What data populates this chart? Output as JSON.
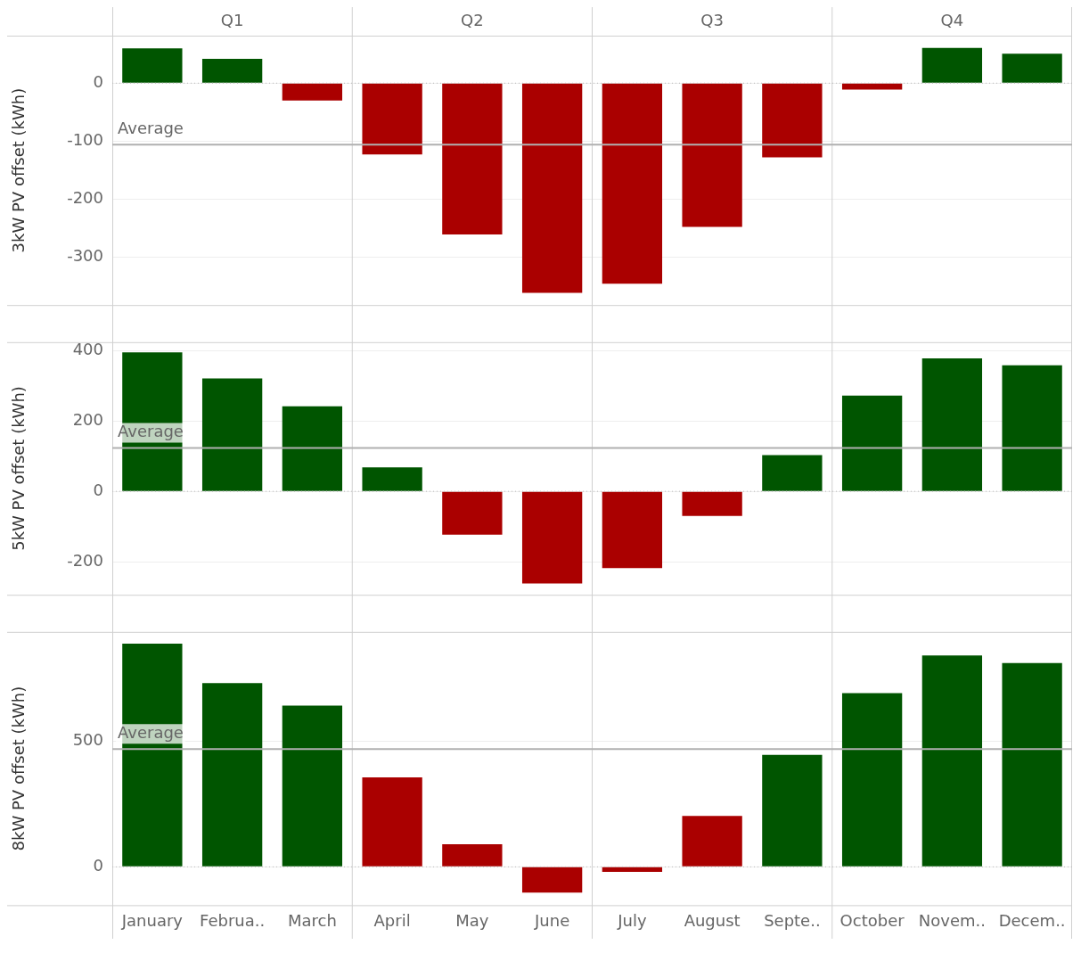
{
  "chart_data": [
    {
      "type": "bar",
      "ylabel": "3kW PV offset (kWh)",
      "annotations": [
        "Q1",
        "Q2",
        "Q3",
        "Q4"
      ],
      "categories": [
        null,
        null,
        null,
        null,
        null,
        null,
        null,
        null,
        null,
        null,
        null,
        null
      ],
      "values": [
        60,
        42,
        -30,
        -123,
        -261,
        -362,
        -346,
        -248,
        -128,
        -11,
        61,
        51
      ],
      "colors": [
        "#005500",
        "#005500",
        "#aa0000",
        "#aa0000",
        "#aa0000",
        "#aa0000",
        "#aa0000",
        "#aa0000",
        "#aa0000",
        "#aa0000",
        "#005500",
        "#005500"
      ],
      "ylim": [
        -383,
        82
      ],
      "yticks": [
        -300,
        -200,
        -100,
        0
      ],
      "grid": "y",
      "tick_labels": "y",
      "ref_lines": [
        {
          "axis": "y",
          "value": -106,
          "label": "Average",
          "color": "#b0b0b0"
        },
        {
          "axis": "y",
          "value": 0,
          "color": "#bbbbbb",
          "line_style": "dotted"
        }
      ]
    },
    {
      "type": "bar",
      "ylabel": "5kW PV offset (kWh)",
      "categories": [
        null,
        null,
        null,
        null,
        null,
        null,
        null,
        null,
        null,
        null,
        null,
        null
      ],
      "values": [
        395,
        321,
        242,
        68,
        -123,
        -262,
        -218,
        -70,
        103,
        272,
        378,
        358
      ],
      "colors": [
        "#005500",
        "#005500",
        "#005500",
        "#005500",
        "#aa0000",
        "#aa0000",
        "#aa0000",
        "#aa0000",
        "#005500",
        "#005500",
        "#005500",
        "#005500"
      ],
      "ylim": [
        -294,
        424
      ],
      "yticks": [
        -200,
        0,
        200,
        400
      ],
      "grid": "y",
      "tick_labels": "y",
      "ref_lines": [
        {
          "axis": "y",
          "value": 123,
          "label": "Average",
          "color": "#b0b0b0"
        },
        {
          "axis": "y",
          "value": 0,
          "color": "#bbbbbb",
          "line_style": "dotted"
        }
      ]
    },
    {
      "type": "bar",
      "ylabel": "8kW PV offset (kWh)",
      "categories": [
        "January",
        "Februa..",
        "March",
        "April",
        "May",
        "June",
        "July",
        "August",
        "Septe..",
        "October",
        "Novem..",
        "Decem.."
      ],
      "values": [
        890,
        733,
        643,
        357,
        90,
        -103,
        -20,
        203,
        447,
        693,
        843,
        813
      ],
      "colors": [
        "#005500",
        "#005500",
        "#005500",
        "#aa0000",
        "#aa0000",
        "#aa0000",
        "#aa0000",
        "#aa0000",
        "#005500",
        "#005500",
        "#005500",
        "#005500"
      ],
      "ylim": [
        -153,
        937
      ],
      "yticks": [
        0,
        500
      ],
      "grid": "y",
      "ref_lines": [
        {
          "axis": "y",
          "value": 470,
          "label": "Average",
          "color": "#b0b0b0"
        },
        {
          "axis": "y",
          "value": 0,
          "color": "#bbbbbb",
          "line_style": "dotted"
        }
      ]
    }
  ]
}
